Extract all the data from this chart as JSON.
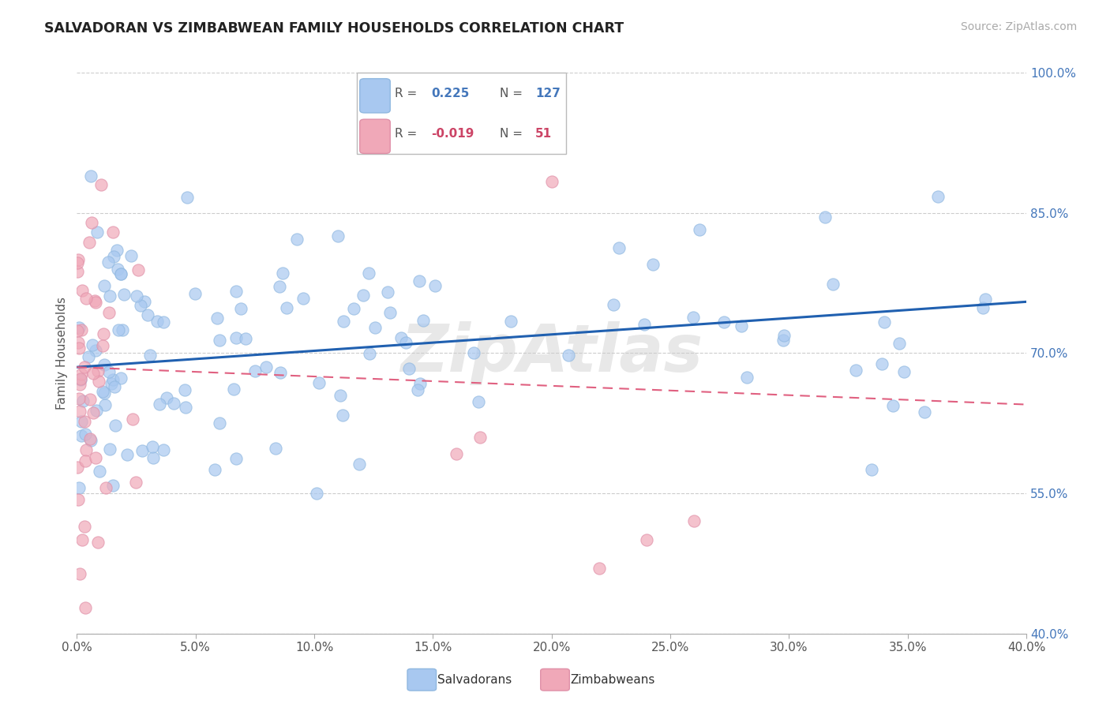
{
  "title": "SALVADORAN VS ZIMBABWEAN FAMILY HOUSEHOLDS CORRELATION CHART",
  "source": "Source: ZipAtlas.com",
  "ylabel": "Family Households",
  "xlim": [
    0.0,
    0.4
  ],
  "ylim": [
    0.4,
    1.0
  ],
  "xtick_vals": [
    0.0,
    0.05,
    0.1,
    0.15,
    0.2,
    0.25,
    0.3,
    0.35,
    0.4
  ],
  "ytick_vals": [
    0.4,
    0.55,
    0.7,
    0.85,
    1.0
  ],
  "ytick_labels": [
    "40.0%",
    "55.0%",
    "70.0%",
    "85.0%",
    "100.0%"
  ],
  "xtick_labels": [
    "0.0%",
    "5.0%",
    "10.0%",
    "15.0%",
    "20.0%",
    "25.0%",
    "30.0%",
    "35.0%",
    "40.0%"
  ],
  "salvadoran_color": "#a8c8f0",
  "zimbabwean_color": "#f0a8b8",
  "salvadoran_line_color": "#2060b0",
  "zimbabwean_line_color": "#e06080",
  "background_color": "#ffffff",
  "grid_color": "#cccccc",
  "R_salv": 0.225,
  "N_salv": 127,
  "R_zimb": -0.019,
  "N_zimb": 51,
  "watermark": "ZipAtlas"
}
